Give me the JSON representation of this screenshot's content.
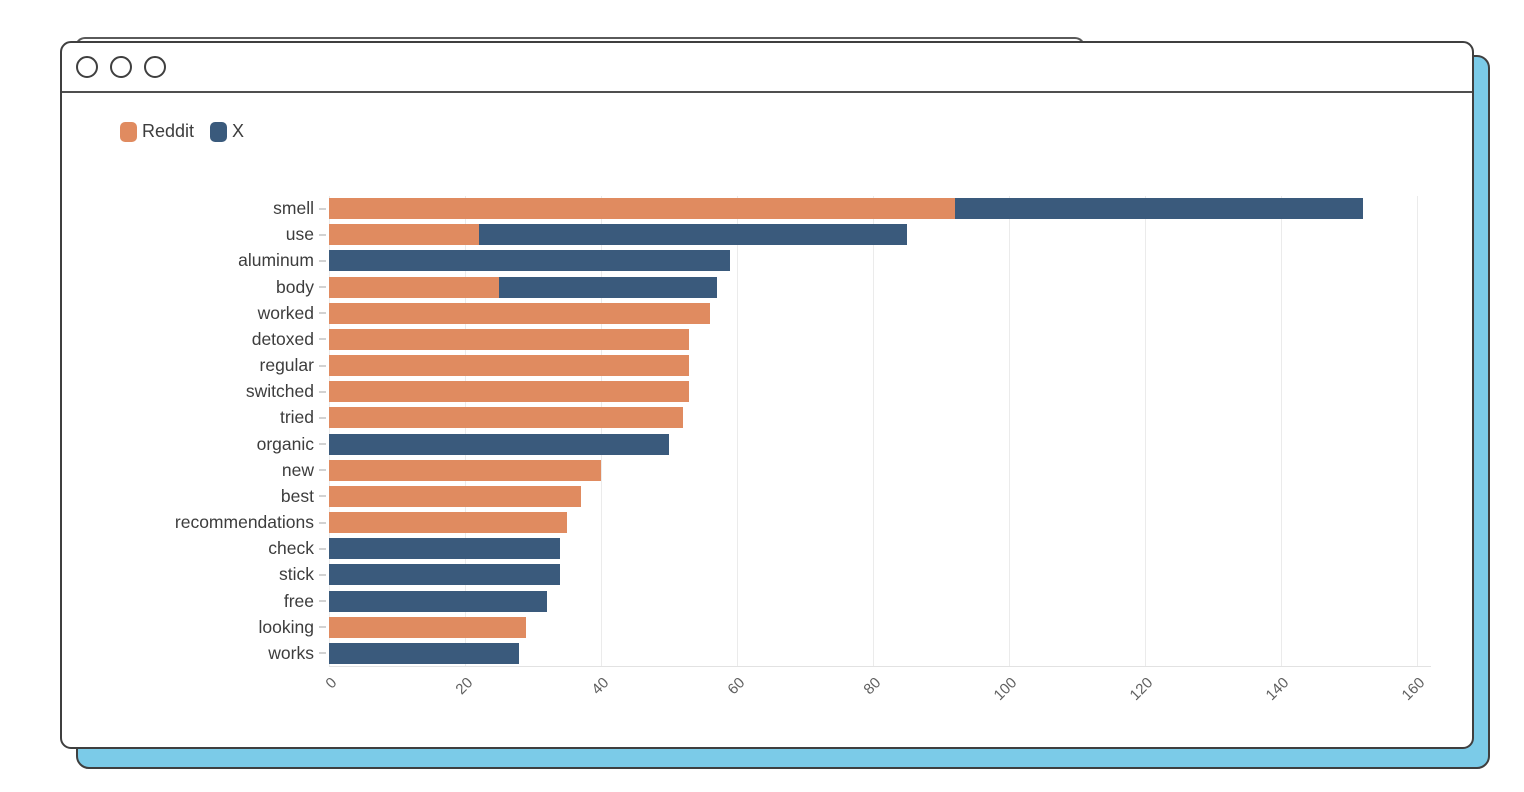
{
  "window": {
    "type": "browser-mockup",
    "controls": [
      "circle",
      "circle",
      "circle"
    ],
    "accent_shadow_color": "#7BCBE8",
    "frame_border_color": "#3F3F3F"
  },
  "colors": {
    "reddit_orange": "#E08B60",
    "x_navy": "#3A5A7C",
    "gridline": "#EBEBEB",
    "category_label": "#3D3D3D",
    "tick_label": "#5F5F5F"
  },
  "chart_data": {
    "type": "bar",
    "orientation": "horizontal",
    "stacked": true,
    "title": "",
    "xlabel": "",
    "ylabel": "",
    "grid": "vertical",
    "legend_position": "top-left",
    "xlim": [
      0,
      162
    ],
    "xticks": [
      0,
      20,
      40,
      60,
      80,
      100,
      120,
      140,
      160
    ],
    "categories": [
      "smell",
      "use",
      "aluminum",
      "body",
      "worked",
      "detoxed",
      "regular",
      "switched",
      "tried",
      "organic",
      "new",
      "best",
      "recommendations",
      "check",
      "stick",
      "free",
      "looking",
      "works"
    ],
    "series": [
      {
        "name": "Reddit",
        "color": "#E08B60",
        "values": [
          92,
          22,
          0,
          25,
          56,
          53,
          53,
          53,
          52,
          0,
          40,
          37,
          35,
          0,
          0,
          0,
          29,
          0
        ]
      },
      {
        "name": "X",
        "color": "#3A5A7C",
        "values": [
          60,
          63,
          59,
          32,
          0,
          0,
          0,
          0,
          0,
          50,
          0,
          0,
          0,
          34,
          34,
          32,
          0,
          28
        ]
      }
    ]
  }
}
